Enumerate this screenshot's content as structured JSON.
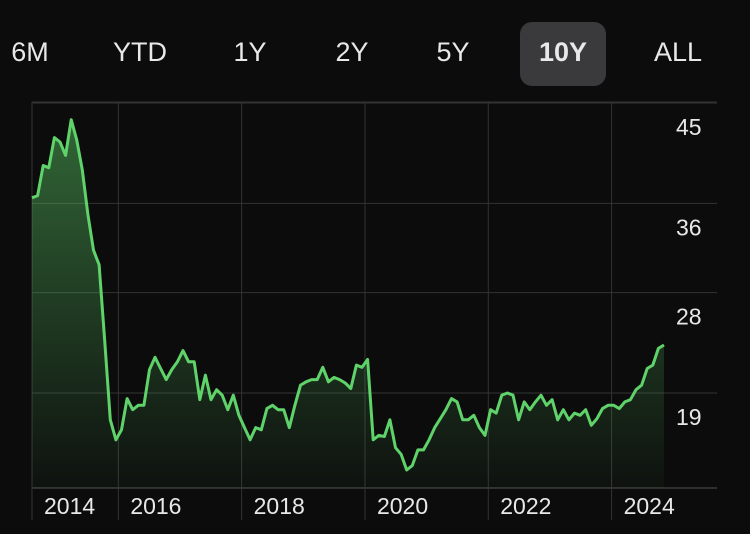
{
  "tabs": {
    "items": [
      "6M",
      "YTD",
      "1Y",
      "2Y",
      "5Y",
      "10Y",
      "ALL"
    ],
    "selected": 5
  },
  "chart_data": {
    "type": "area",
    "xlim": [
      2014.6,
      2024.85
    ],
    "xticks": [
      {
        "value": 2014.6,
        "label": "2014"
      },
      2016,
      2018,
      2020,
      2022,
      2024
    ],
    "ylim": [
      10.5,
      45
    ],
    "yticks": [
      45,
      36,
      28,
      19
    ],
    "grid": true,
    "series": [
      {
        "color": "#5fd36a",
        "values": [
          36.5,
          36.7,
          39.4,
          39.2,
          41.9,
          41.5,
          40.3,
          43.5,
          41.7,
          39.0,
          35.0,
          31.8,
          30.5,
          23.7,
          16.6,
          14.8,
          15.7,
          18.5,
          17.5,
          17.9,
          17.9,
          21.1,
          22.2,
          21.2,
          20.2,
          21.1,
          21.8,
          22.8,
          21.8,
          21.8,
          18.4,
          20.6,
          18.4,
          19.3,
          18.8,
          17.5,
          18.8,
          17.0,
          15.9,
          14.8,
          15.9,
          15.7,
          17.6,
          17.9,
          17.5,
          17.5,
          15.9,
          17.9,
          19.7,
          20.0,
          20.2,
          20.2,
          21.3,
          20.0,
          20.4,
          20.2,
          19.9,
          19.4,
          21.5,
          21.3,
          22.0,
          14.8,
          15.2,
          15.1,
          16.6,
          14.1,
          13.5,
          12.1,
          12.5,
          13.9,
          13.9,
          14.8,
          15.9,
          16.7,
          17.5,
          18.5,
          18.2,
          16.6,
          16.6,
          17.0,
          15.9,
          15.2,
          17.5,
          17.2,
          18.8,
          19.0,
          18.8,
          16.6,
          18.2,
          17.5,
          18.2,
          18.8,
          17.9,
          18.4,
          16.6,
          17.5,
          16.6,
          17.2,
          17.0,
          17.5,
          16.1,
          16.7,
          17.6,
          17.9,
          17.9,
          17.6,
          18.2,
          18.4,
          19.3,
          19.7,
          21.2,
          21.5,
          23.0,
          23.3
        ]
      }
    ]
  }
}
